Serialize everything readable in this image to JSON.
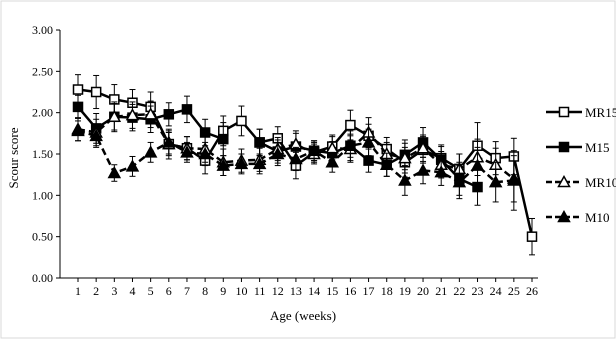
{
  "chart_data": {
    "type": "line",
    "title": "",
    "xlabel": "Age (weeks)",
    "ylabel": "Scour score",
    "ylim": [
      0,
      3
    ],
    "yticks": [
      "0.00",
      "0.50",
      "1.00",
      "1.50",
      "2.00",
      "2.50",
      "3.00"
    ],
    "categories": [
      "1",
      "2",
      "3",
      "4",
      "5",
      "6",
      "7",
      "8",
      "9",
      "10",
      "11",
      "12",
      "13",
      "14",
      "15",
      "16",
      "17",
      "18",
      "19",
      "20",
      "21",
      "22",
      "23",
      "24",
      "25",
      "26"
    ],
    "grid": false,
    "legend_position": "right",
    "series": [
      {
        "name": "MR15",
        "marker": "open-square",
        "line": "solid",
        "color": "#000000",
        "values": [
          2.28,
          2.25,
          2.16,
          2.12,
          2.07,
          1.62,
          1.57,
          1.42,
          1.78,
          1.9,
          1.64,
          1.69,
          1.36,
          1.52,
          1.59,
          1.85,
          1.72,
          1.56,
          1.4,
          1.55,
          1.45,
          1.32,
          1.6,
          1.45,
          1.47,
          0.5
        ],
        "errors": [
          0.18,
          0.2,
          0.18,
          0.16,
          0.18,
          0.18,
          0.14,
          0.16,
          0.18,
          0.18,
          0.16,
          0.14,
          0.16,
          0.12,
          0.14,
          0.18,
          0.14,
          0.14,
          0.18,
          0.16,
          0.16,
          0.18,
          0.28,
          0.2,
          0.22,
          0.22
        ]
      },
      {
        "name": "M15",
        "marker": "filled-square",
        "line": "solid",
        "color": "#000000",
        "values": [
          2.07,
          1.81,
          1.95,
          1.94,
          1.92,
          1.98,
          2.04,
          1.76,
          1.68,
          null,
          1.64,
          1.53,
          1.59,
          1.54,
          1.51,
          1.6,
          1.42,
          1.37,
          1.49,
          1.64,
          1.43,
          1.2,
          1.1,
          null,
          null,
          null
        ],
        "errors": [
          0.14,
          0.18,
          0.16,
          0.16,
          0.16,
          0.14,
          0.16,
          0.16,
          0.2,
          null,
          0.16,
          0.14,
          0.16,
          0.12,
          0.14,
          0.18,
          0.14,
          0.14,
          0.18,
          0.18,
          0.16,
          0.2,
          0.22,
          null,
          null,
          null
        ]
      },
      {
        "name": "MR10",
        "marker": "open-triangle",
        "line": "dashed",
        "color": "#000000",
        "values": [
          1.8,
          1.76,
          1.95,
          1.97,
          1.98,
          1.62,
          1.57,
          1.56,
          1.4,
          1.42,
          1.43,
          1.56,
          1.62,
          1.5,
          1.57,
          1.56,
          1.76,
          1.5,
          1.45,
          1.57,
          1.37,
          1.32,
          1.46,
          1.37,
          1.2,
          null
        ],
        "errors": [
          0.14,
          0.16,
          0.18,
          0.16,
          0.16,
          0.14,
          0.14,
          0.16,
          0.16,
          0.14,
          0.14,
          0.14,
          0.16,
          0.12,
          0.14,
          0.16,
          0.18,
          0.14,
          0.18,
          0.16,
          0.16,
          0.18,
          0.22,
          0.2,
          0.28,
          null
        ]
      },
      {
        "name": "M10",
        "marker": "filled-triangle",
        "line": "dashed",
        "color": "#000000",
        "values": [
          1.78,
          1.72,
          1.27,
          1.35,
          1.52,
          1.64,
          1.52,
          1.5,
          1.36,
          1.38,
          1.38,
          1.5,
          1.44,
          1.54,
          1.4,
          1.6,
          1.64,
          1.37,
          1.18,
          1.3,
          1.28,
          1.16,
          1.36,
          1.16,
          1.18,
          null
        ],
        "errors": [
          0.12,
          0.14,
          0.1,
          0.12,
          0.12,
          0.14,
          0.12,
          0.14,
          0.12,
          0.12,
          0.12,
          0.14,
          0.14,
          0.12,
          0.12,
          0.14,
          0.16,
          0.14,
          0.18,
          0.16,
          0.16,
          0.2,
          0.22,
          0.24,
          0.36,
          null
        ]
      }
    ]
  }
}
